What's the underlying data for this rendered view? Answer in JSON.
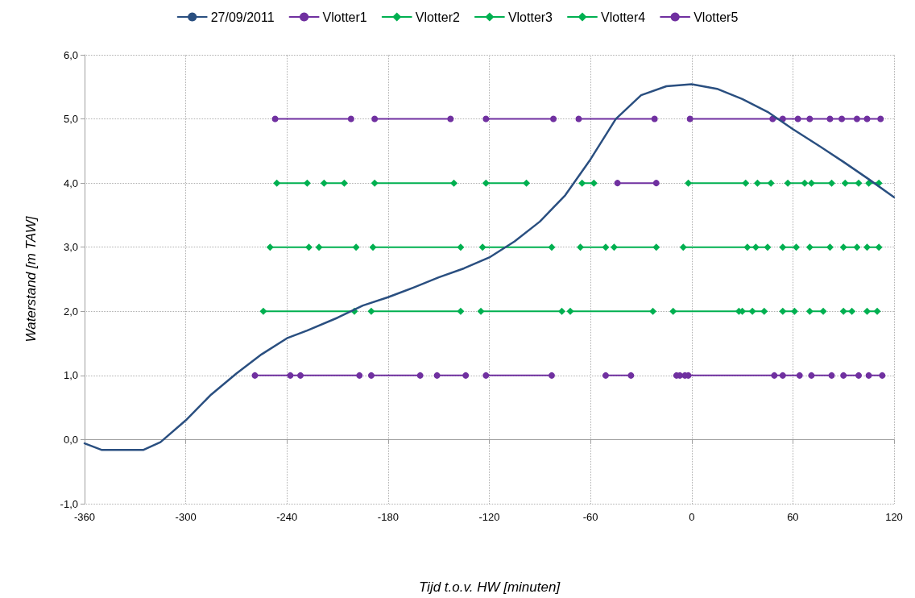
{
  "chart_data": {
    "type": "line",
    "xlabel": "Tijd t.o.v. HW [minuten]",
    "ylabel": "Waterstand [m TAW]",
    "xlim": [
      -360,
      120
    ],
    "xticks": [
      -360,
      -300,
      -240,
      -180,
      -120,
      -60,
      0,
      60,
      120
    ],
    "ylim": [
      -1,
      6
    ],
    "yticks": [
      {
        "value": -1,
        "label": "-1,0"
      },
      {
        "value": 0,
        "label": "0,0"
      },
      {
        "value": 1,
        "label": "1,0"
      },
      {
        "value": 2,
        "label": "2,0"
      },
      {
        "value": 3,
        "label": "3,0"
      },
      {
        "value": 4,
        "label": "4,0"
      },
      {
        "value": 5,
        "label": "5,0"
      },
      {
        "value": 6,
        "label": "6,0"
      }
    ],
    "grid": true,
    "legend": "top",
    "series": [
      {
        "name": "27/09/2011",
        "color": "#2a4f80",
        "marker": "none",
        "x": [
          -360,
          -350,
          -340,
          -325,
          -315,
          -300,
          -285,
          -270,
          -255,
          -240,
          -228,
          -210,
          -195,
          -180,
          -165,
          -150,
          -135,
          -120,
          -105,
          -90,
          -75,
          -60,
          -45,
          -30,
          -15,
          0,
          15,
          30,
          45,
          60,
          75,
          90,
          105,
          120
        ],
        "values": [
          -0.06,
          -0.16,
          -0.16,
          -0.16,
          -0.04,
          0.3,
          0.7,
          1.03,
          1.33,
          1.58,
          1.7,
          1.9,
          2.09,
          2.22,
          2.37,
          2.53,
          2.67,
          2.84,
          3.09,
          3.4,
          3.81,
          4.37,
          5.0,
          5.37,
          5.51,
          5.54,
          5.47,
          5.31,
          5.11,
          4.84,
          4.59,
          4.33,
          4.06,
          3.78
        ]
      },
      {
        "name": "Vlotter1",
        "color": "#7030a0",
        "marker": "circle",
        "x": [
          -259,
          -238,
          -232,
          -197,
          null,
          -190,
          -161,
          null,
          -151,
          -134,
          null,
          -122,
          -83,
          null,
          -51,
          -36,
          null,
          -9,
          -7,
          -4,
          -2,
          49,
          54,
          64,
          null,
          71,
          83,
          null,
          90,
          99,
          null,
          105,
          113
        ],
        "values": [
          1,
          1,
          1,
          1,
          null,
          1,
          1,
          null,
          1,
          1,
          null,
          1,
          1,
          null,
          1,
          1,
          null,
          1,
          1,
          1,
          1,
          1,
          1,
          1,
          null,
          1,
          1,
          null,
          1,
          1,
          null,
          1,
          1
        ]
      },
      {
        "name": "Vlotter2",
        "color": "#00b050",
        "marker": "diamond",
        "x": [
          -254,
          -200,
          null,
          -190,
          -137,
          null,
          -125,
          -77,
          null,
          -72,
          -23,
          null,
          -11,
          28,
          null,
          30,
          36,
          43,
          null,
          54,
          61,
          null,
          70,
          78,
          null,
          90,
          95,
          null,
          104,
          110
        ],
        "values": [
          2,
          2,
          null,
          2,
          2,
          null,
          2,
          2,
          null,
          2,
          2,
          null,
          2,
          2,
          null,
          2,
          2,
          2,
          null,
          2,
          2,
          null,
          2,
          2,
          null,
          2,
          2,
          null,
          2,
          2
        ]
      },
      {
        "name": "Vlotter3",
        "color": "#00b050",
        "marker": "diamond",
        "x": [
          -250,
          -227,
          null,
          -221,
          -199,
          null,
          -189,
          -137,
          null,
          -124,
          -83,
          null,
          -66,
          -51,
          null,
          -46,
          -21,
          null,
          -5,
          33,
          38,
          45,
          null,
          54,
          62,
          null,
          70,
          82,
          null,
          90,
          98,
          null,
          104,
          111
        ],
        "values": [
          3,
          3,
          null,
          3,
          3,
          null,
          3,
          3,
          null,
          3,
          3,
          null,
          3,
          3,
          null,
          3,
          3,
          null,
          3,
          3,
          3,
          3,
          null,
          3,
          3,
          null,
          3,
          3,
          null,
          3,
          3,
          null,
          3,
          3
        ]
      },
      {
        "name": "Vlotter4",
        "color": "#00b050",
        "marker": "diamond",
        "x": [
          -246,
          -228,
          null,
          -218,
          -206,
          null,
          -188,
          -141,
          null,
          -122,
          -98,
          null,
          -65,
          -58,
          null,
          -2,
          32,
          null,
          39,
          47,
          null,
          57,
          67,
          null,
          71,
          83,
          null,
          91,
          99,
          null,
          105,
          111
        ],
        "values": [
          4,
          4,
          null,
          4,
          4,
          null,
          4,
          4,
          null,
          4,
          4,
          null,
          4,
          4,
          null,
          4,
          4,
          null,
          4,
          4,
          null,
          4,
          4,
          null,
          4,
          4,
          null,
          4,
          4,
          null,
          4,
          4
        ]
      },
      {
        "name": "Vlotter5",
        "color": "#7030a0",
        "marker": "circle",
        "x": [
          -247,
          -202,
          null,
          -188,
          -143,
          null,
          -122,
          -82,
          null,
          -67,
          -22,
          null,
          -1,
          48,
          54,
          63,
          70,
          82,
          89,
          98,
          104,
          112,
          null,
          -44,
          -21
        ],
        "values": [
          5,
          5,
          null,
          5,
          5,
          null,
          5,
          5,
          null,
          5,
          5,
          null,
          5,
          5,
          5,
          5,
          5,
          5,
          5,
          5,
          5,
          5,
          null,
          4,
          4
        ]
      }
    ]
  }
}
